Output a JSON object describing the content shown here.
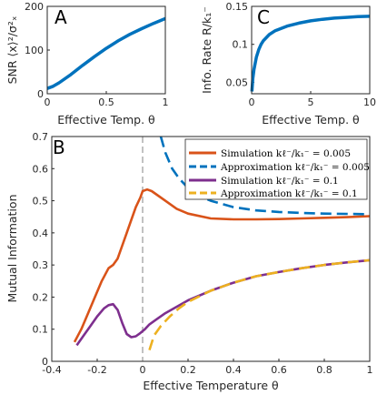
{
  "chart_data": [
    {
      "type": "line",
      "panel_label": "A",
      "xlabel": "Effective Temp. θ",
      "ylabel": "SNR ⟨x⟩²/σ²ₓ",
      "xlim": [
        0,
        1
      ],
      "ylim": [
        0,
        200
      ],
      "xticks": [
        0,
        0.5,
        1
      ],
      "xtick_labels": [
        "0",
        "0.5",
        "1"
      ],
      "yticks": [
        0,
        100,
        200
      ],
      "ytick_labels": [
        "0",
        "100",
        "200"
      ],
      "series": [
        {
          "color": "#0072BD",
          "x": [
            0,
            0.05,
            0.1,
            0.2,
            0.3,
            0.4,
            0.5,
            0.6,
            0.7,
            0.8,
            0.9,
            1.0
          ],
          "y": [
            12,
            17,
            25,
            44,
            65,
            85,
            104,
            121,
            136,
            149,
            161,
            172
          ]
        }
      ]
    },
    {
      "type": "line",
      "panel_label": "C",
      "xlabel": "Effective Temp. θ",
      "ylabel": "Info. Rate R/k₁⁻",
      "xlim": [
        0,
        10
      ],
      "ylim": [
        0.035,
        0.15
      ],
      "xticks": [
        0,
        5,
        10
      ],
      "xtick_labels": [
        "0",
        "5",
        "10"
      ],
      "yticks": [
        0.05,
        0.1,
        0.15
      ],
      "ytick_labels": [
        "0.05",
        "0.1",
        "0.15"
      ],
      "series": [
        {
          "color": "#0072BD",
          "x": [
            0.02,
            0.1,
            0.2,
            0.4,
            0.6,
            0.8,
            1,
            1.5,
            2,
            3,
            4,
            5,
            6,
            7,
            8,
            9,
            10
          ],
          "y": [
            0.038,
            0.055,
            0.067,
            0.083,
            0.093,
            0.1,
            0.105,
            0.113,
            0.118,
            0.124,
            0.128,
            0.131,
            0.133,
            0.1345,
            0.1355,
            0.1365,
            0.137
          ]
        }
      ]
    },
    {
      "type": "line",
      "panel_label": "B",
      "xlabel": "Effective Temperature θ",
      "ylabel": "Mutual Information",
      "xlim": [
        -0.4,
        1
      ],
      "ylim": [
        0,
        0.7
      ],
      "xticks": [
        -0.4,
        -0.2,
        0,
        0.2,
        0.4,
        0.6,
        0.8,
        1
      ],
      "xtick_labels": [
        "-0.4",
        "-0.2",
        "0",
        "0.2",
        "0.4",
        "0.6",
        "0.8",
        "1"
      ],
      "yticks": [
        0,
        0.1,
        0.2,
        0.3,
        0.4,
        0.5,
        0.6,
        0.7
      ],
      "ytick_labels": [
        "0",
        "0.1",
        "0.2",
        "0.3",
        "0.4",
        "0.5",
        "0.6",
        "0.7"
      ],
      "vline_x": 0,
      "legend_position": "top-right",
      "series": [
        {
          "name": "Simulation kℓ⁻/k₁⁻ = 0.005",
          "color": "#D95319",
          "dash": false,
          "x": [
            -0.3,
            -0.27,
            -0.24,
            -0.21,
            -0.18,
            -0.15,
            -0.13,
            -0.11,
            -0.09,
            -0.07,
            -0.05,
            -0.03,
            -0.01,
            0,
            0.02,
            0.04,
            0.06,
            0.1,
            0.15,
            0.2,
            0.3,
            0.4,
            0.5,
            0.6,
            0.7,
            0.8,
            0.9,
            1.0
          ],
          "y": [
            0.06,
            0.1,
            0.15,
            0.2,
            0.25,
            0.29,
            0.3,
            0.32,
            0.36,
            0.4,
            0.44,
            0.48,
            0.51,
            0.53,
            0.535,
            0.53,
            0.52,
            0.5,
            0.475,
            0.46,
            0.445,
            0.442,
            0.442,
            0.443,
            0.445,
            0.447,
            0.449,
            0.452
          ]
        },
        {
          "name": "Approximation kℓ⁻/k₁⁻ = 0.005",
          "color": "#0072BD",
          "dash": true,
          "x": [
            0.08,
            0.1,
            0.13,
            0.16,
            0.2,
            0.25,
            0.3,
            0.4,
            0.5,
            0.6,
            0.7,
            0.8,
            0.9,
            1.0
          ],
          "y": [
            0.7,
            0.65,
            0.6,
            0.57,
            0.54,
            0.515,
            0.5,
            0.48,
            0.47,
            0.465,
            0.462,
            0.46,
            0.459,
            0.458
          ]
        },
        {
          "name": "Simulation kℓ⁻/k₁⁻ = 0.1",
          "color": "#7E2F8E",
          "dash": false,
          "x": [
            -0.29,
            -0.26,
            -0.23,
            -0.2,
            -0.17,
            -0.15,
            -0.13,
            -0.11,
            -0.09,
            -0.07,
            -0.05,
            -0.03,
            -0.01,
            0.01,
            0.03,
            0.06,
            0.1,
            0.2,
            0.3,
            0.4,
            0.5,
            0.6,
            0.7,
            0.8,
            0.9,
            1.0
          ],
          "y": [
            0.05,
            0.08,
            0.11,
            0.14,
            0.165,
            0.175,
            0.178,
            0.16,
            0.12,
            0.085,
            0.075,
            0.078,
            0.088,
            0.1,
            0.115,
            0.13,
            0.15,
            0.19,
            0.22,
            0.245,
            0.265,
            0.278,
            0.29,
            0.3,
            0.308,
            0.315
          ]
        },
        {
          "name": "Approximation kℓ⁻/k₁⁻ = 0.1",
          "color": "#EDB120",
          "dash": true,
          "x": [
            0.03,
            0.05,
            0.08,
            0.12,
            0.16,
            0.2,
            0.3,
            0.4,
            0.5,
            0.6,
            0.7,
            0.8,
            0.9,
            1.0
          ],
          "y": [
            0.035,
            0.08,
            0.11,
            0.14,
            0.165,
            0.185,
            0.22,
            0.245,
            0.265,
            0.278,
            0.29,
            0.3,
            0.308,
            0.315
          ]
        }
      ]
    }
  ]
}
